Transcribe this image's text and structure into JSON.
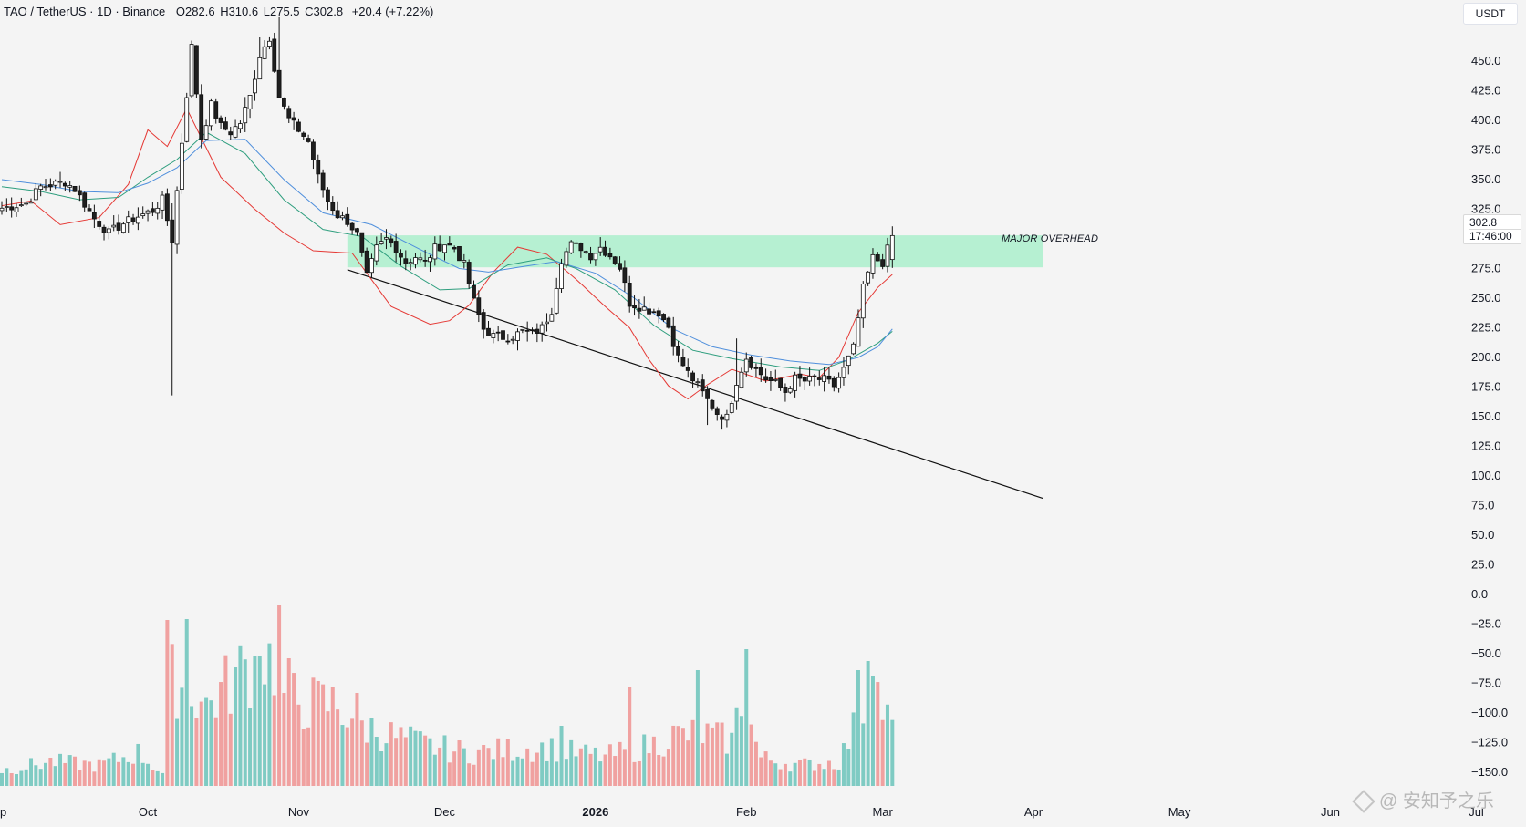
{
  "header": {
    "symbol": "TAO / TetherUS · 1D · Binance",
    "o_label": "O",
    "o_value": "282.6",
    "h_label": "H",
    "h_value": "310.6",
    "l_label": "L",
    "l_value": "275.5",
    "c_label": "C",
    "c_value": "302.8",
    "change": "+20.4 (+7.22%)"
  },
  "axis": {
    "currency": "USDT"
  },
  "price_tag": {
    "price": "302.8",
    "countdown": "17:46:00"
  },
  "zone_label": "MAJOR OVERHEAD",
  "watermark": "@ 安知予之乐",
  "colors": {
    "up": "#26a69a",
    "down": "#ef5350",
    "up_volume": "#7fcbc3",
    "down_volume": "#f0a1a0",
    "candle_up_body": "#ffffff",
    "candle_down_body": "#1f1f1f",
    "ma_fast": "#e53935",
    "ma_mid": "#2e9e7e",
    "ma_slow": "#4f8fdc",
    "zone": "#b6f0d2",
    "trendline": "#111111",
    "background": "#f4f4f4"
  },
  "chart_data": {
    "type": "candlestick",
    "title": "",
    "symbol": "TAO / TetherUS",
    "interval": "1D",
    "exchange": "Binance",
    "x_tick_labels": [
      "p",
      "Oct",
      "Nov",
      "Dec",
      "2026",
      "Feb",
      "Mar",
      "Apr",
      "May",
      "Jun",
      "Jul"
    ],
    "y_tick_labels": [
      "450.0",
      "425.0",
      "400.0",
      "375.0",
      "350.0",
      "325.0",
      "275.0",
      "250.0",
      "225.0",
      "200.0",
      "175.0",
      "150.0",
      "125.0",
      "100.0",
      "75.0",
      "50.0",
      "25.0",
      "0.0",
      "−25.0",
      "−50.0",
      "−75.0",
      "−100.0",
      "−125.0",
      "−150.0"
    ],
    "y_tick_values": [
      450,
      425,
      400,
      375,
      350,
      325,
      275,
      250,
      225,
      200,
      175,
      150,
      125,
      100,
      75,
      50,
      25,
      0,
      -25,
      -50,
      -75,
      -100,
      -125,
      -150
    ],
    "ylim": [
      -156,
      487
    ],
    "grid": false,
    "last_bar": {
      "open": 282.6,
      "high": 310.6,
      "low": 275.5,
      "close": 302.8,
      "change": 20.4,
      "change_pct": 7.22
    },
    "resistance_zone": {
      "low": 276,
      "high": 303,
      "label": "MAJOR OVERHEAD"
    },
    "trendline": [
      {
        "date": "2025-11-11",
        "price": 274
      },
      {
        "date": "2026-04-03",
        "price": 81
      }
    ],
    "moving_averages": [
      {
        "role": "fast",
        "color": "#e53935",
        "points": [
          [
            0,
            328
          ],
          [
            6,
            332
          ],
          [
            12,
            312
          ],
          [
            20,
            318
          ],
          [
            26,
            346
          ],
          [
            30,
            392
          ],
          [
            34,
            378
          ],
          [
            38,
            410
          ],
          [
            45,
            352
          ],
          [
            52,
            325
          ],
          [
            58,
            305
          ],
          [
            64,
            290
          ],
          [
            72,
            288
          ],
          [
            80,
            243
          ],
          [
            88,
            228
          ],
          [
            92,
            231
          ],
          [
            96,
            244
          ],
          [
            101,
            272
          ],
          [
            106,
            293
          ],
          [
            112,
            287
          ],
          [
            118,
            266
          ],
          [
            124,
            243
          ],
          [
            129,
            225
          ],
          [
            133,
            198
          ],
          [
            137,
            176
          ],
          [
            141,
            165
          ],
          [
            145,
            177
          ],
          [
            150,
            190
          ],
          [
            157,
            180
          ],
          [
            164,
            186
          ],
          [
            168,
            183
          ],
          [
            172,
            200
          ],
          [
            176,
            238
          ],
          [
            180,
            259
          ],
          [
            183,
            270
          ]
        ]
      },
      {
        "role": "mid",
        "color": "#2e9e7e",
        "points": [
          [
            0,
            344
          ],
          [
            8,
            340
          ],
          [
            16,
            333
          ],
          [
            24,
            335
          ],
          [
            30,
            352
          ],
          [
            36,
            367
          ],
          [
            42,
            390
          ],
          [
            50,
            372
          ],
          [
            58,
            333
          ],
          [
            66,
            308
          ],
          [
            74,
            302
          ],
          [
            82,
            277
          ],
          [
            90,
            257
          ],
          [
            96,
            258
          ],
          [
            104,
            278
          ],
          [
            112,
            284
          ],
          [
            118,
            275
          ],
          [
            126,
            257
          ],
          [
            134,
            227
          ],
          [
            142,
            206
          ],
          [
            150,
            199
          ],
          [
            160,
            192
          ],
          [
            168,
            189
          ],
          [
            174,
            198
          ],
          [
            180,
            212
          ],
          [
            183,
            222
          ]
        ]
      },
      {
        "role": "slow",
        "color": "#4f8fdc",
        "points": [
          [
            0,
            350
          ],
          [
            8,
            346
          ],
          [
            16,
            340
          ],
          [
            24,
            339
          ],
          [
            30,
            347
          ],
          [
            36,
            360
          ],
          [
            42,
            383
          ],
          [
            50,
            384
          ],
          [
            58,
            350
          ],
          [
            66,
            322
          ],
          [
            76,
            312
          ],
          [
            86,
            291
          ],
          [
            94,
            275
          ],
          [
            100,
            272
          ],
          [
            106,
            276
          ],
          [
            114,
            281
          ],
          [
            122,
            271
          ],
          [
            130,
            250
          ],
          [
            138,
            224
          ],
          [
            146,
            209
          ],
          [
            154,
            202
          ],
          [
            162,
            197
          ],
          [
            170,
            194
          ],
          [
            176,
            200
          ],
          [
            180,
            209
          ],
          [
            183,
            224
          ]
        ]
      }
    ],
    "seed": 7,
    "anchors": [
      [
        0,
        326
      ],
      [
        5,
        330
      ],
      [
        8,
        344
      ],
      [
        13,
        348
      ],
      [
        15,
        342
      ],
      [
        19,
        317
      ],
      [
        22,
        305
      ],
      [
        25,
        313
      ],
      [
        28,
        319
      ],
      [
        31,
        324
      ],
      [
        33,
        333
      ],
      [
        35,
        299
      ],
      [
        37,
        382
      ],
      [
        39,
        462
      ],
      [
        41,
        385
      ],
      [
        43,
        413
      ],
      [
        45,
        395
      ],
      [
        47,
        390
      ],
      [
        49,
        398
      ],
      [
        51,
        420
      ],
      [
        53,
        455
      ],
      [
        55,
        470
      ],
      [
        57,
        420
      ],
      [
        59,
        401
      ],
      [
        61,
        392
      ],
      [
        63,
        382
      ],
      [
        65,
        352
      ],
      [
        67,
        332
      ],
      [
        69,
        320
      ],
      [
        71,
        315
      ],
      [
        73,
        304
      ],
      [
        75,
        268
      ],
      [
        77,
        292
      ],
      [
        79,
        300
      ],
      [
        81,
        292
      ],
      [
        83,
        280
      ],
      [
        85,
        285
      ],
      [
        87,
        280
      ],
      [
        89,
        292
      ],
      [
        91,
        296
      ],
      [
        93,
        292
      ],
      [
        95,
        278
      ],
      [
        97,
        247
      ],
      [
        99,
        224
      ],
      [
        101,
        218
      ],
      [
        103,
        217
      ],
      [
        105,
        218
      ],
      [
        107,
        222
      ],
      [
        109,
        220
      ],
      [
        111,
        225
      ],
      [
        113,
        240
      ],
      [
        115,
        283
      ],
      [
        117,
        295
      ],
      [
        119,
        293
      ],
      [
        121,
        286
      ],
      [
        123,
        293
      ],
      [
        125,
        286
      ],
      [
        127,
        276
      ],
      [
        129,
        246
      ],
      [
        131,
        243
      ],
      [
        133,
        240
      ],
      [
        135,
        238
      ],
      [
        137,
        226
      ],
      [
        139,
        200
      ],
      [
        141,
        187
      ],
      [
        143,
        176
      ],
      [
        145,
        164
      ],
      [
        147,
        153
      ],
      [
        149,
        149
      ],
      [
        151,
        180
      ],
      [
        153,
        200
      ],
      [
        155,
        190
      ],
      [
        157,
        182
      ],
      [
        159,
        178
      ],
      [
        161,
        171
      ],
      [
        163,
        182
      ],
      [
        165,
        180
      ],
      [
        167,
        182
      ],
      [
        169,
        181
      ],
      [
        171,
        176
      ],
      [
        173,
        190
      ],
      [
        175,
        208
      ],
      [
        177,
        258
      ],
      [
        179,
        284
      ],
      [
        181,
        280
      ],
      [
        183,
        302
      ]
    ],
    "volume_anchors": [
      [
        0,
        18
      ],
      [
        10,
        28
      ],
      [
        20,
        24
      ],
      [
        28,
        38
      ],
      [
        34,
        10
      ],
      [
        35,
        122
      ],
      [
        38,
        120
      ],
      [
        42,
        92
      ],
      [
        50,
        136
      ],
      [
        56,
        146
      ],
      [
        58,
        108
      ],
      [
        62,
        96
      ],
      [
        68,
        94
      ],
      [
        72,
        82
      ],
      [
        74,
        70
      ],
      [
        80,
        58
      ],
      [
        88,
        46
      ],
      [
        96,
        38
      ],
      [
        104,
        42
      ],
      [
        112,
        44
      ],
      [
        118,
        38
      ],
      [
        124,
        34
      ],
      [
        130,
        42
      ],
      [
        134,
        48
      ],
      [
        138,
        58
      ],
      [
        144,
        60
      ],
      [
        150,
        52
      ],
      [
        152,
        102
      ],
      [
        156,
        32
      ],
      [
        164,
        24
      ],
      [
        172,
        28
      ],
      [
        176,
        76
      ],
      [
        178,
        94
      ],
      [
        180,
        106
      ],
      [
        183,
        62
      ]
    ],
    "volume_peaks": [
      {
        "i": 34,
        "v": 182
      },
      {
        "i": 38,
        "v": 183
      },
      {
        "i": 53,
        "v": 142
      },
      {
        "i": 57,
        "v": 198
      },
      {
        "i": 59,
        "v": 140
      },
      {
        "i": 73,
        "v": 102
      },
      {
        "i": 115,
        "v": 66
      },
      {
        "i": 129,
        "v": 108
      },
      {
        "i": 143,
        "v": 127
      },
      {
        "i": 153,
        "v": 150
      },
      {
        "i": 176,
        "v": 127
      },
      {
        "i": 178,
        "v": 137
      },
      {
        "i": 179,
        "v": 121
      }
    ]
  }
}
